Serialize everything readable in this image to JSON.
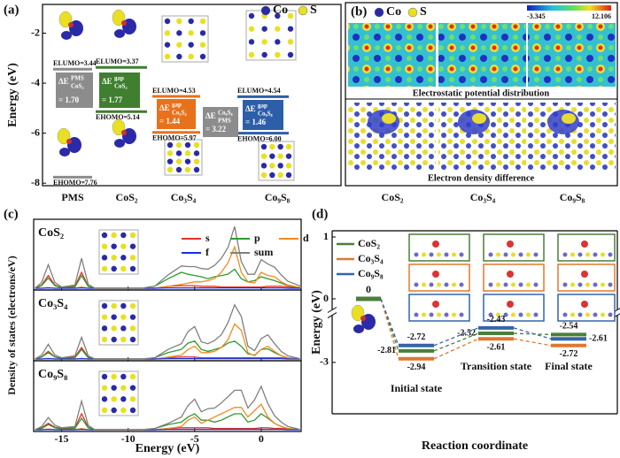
{
  "chart_data": [
    {
      "type": "energy-level",
      "panel": "(a)",
      "ylabel": "Energy (eV)",
      "ylim": [
        -8.1,
        -0.85
      ],
      "yticks": [
        -2,
        -4,
        -6,
        -8
      ],
      "categories": [
        "PMS",
        "CoS₂",
        "Co₃S₄",
        "Co₉S₈"
      ],
      "colors": [
        "#8c8c8c",
        "#3f7f2f",
        "#e8711c",
        "#2d5fa8"
      ],
      "legend": [
        "Co",
        "S"
      ],
      "legend_colors": [
        "#2a2aa8",
        "#e8e020"
      ],
      "lumo_label": "ELUMO=",
      "homo_label": "EHOMO=",
      "lumo": [
        -3.44,
        -3.37,
        -4.53,
        -4.54
      ],
      "homo": [
        -7.76,
        -5.14,
        -5.97,
        -6.0
      ],
      "homo_value_labels": [
        "-7.76",
        "-5.14",
        "-5.97",
        "-6.00"
      ],
      "gaps": [
        {
          "symbol": "ΔE",
          "sup": "PMS",
          "sub": "CoS₂",
          "value": 1.7,
          "value_label": "= 1.70",
          "color": "#8c8c8c"
        },
        {
          "symbol": "ΔE",
          "sup": "gap",
          "sub": "CoS₂",
          "value": 1.77,
          "value_label": "= 1.77",
          "color": "#3f7f2f"
        },
        {
          "symbol": "ΔE",
          "sup": "gap",
          "sub": "Co₃S₄",
          "value": 1.44,
          "value_label": "= 1.44",
          "color": "#e8711c"
        },
        {
          "symbol": "ΔE",
          "sup": "Co₉S₈",
          "sub": "PMS",
          "value": 3.22,
          "value_label": "= 3.22",
          "color": "#8c8c8c"
        },
        {
          "symbol": "ΔE",
          "sup": "gap",
          "sub": "Co₉S₈",
          "value": 1.46,
          "value_label": "= 1.46",
          "color": "#2d5fa8"
        }
      ]
    },
    {
      "type": "image-panel",
      "panel": "(b)",
      "legend": [
        "Co",
        "S"
      ],
      "legend_colors": [
        "#2a2aa8",
        "#e8e020"
      ],
      "colorbar_lim": [
        -3.345,
        12.106
      ],
      "captions": [
        "Electrostatic potential distribution",
        "Electron density difference"
      ],
      "categories": [
        "CoS₂",
        "Co₃S₄",
        "Co₉S₈"
      ]
    },
    {
      "type": "line",
      "panel": "(c)",
      "xlabel": "Energy (eV)",
      "ylabel": "Density of states (electrons/eV)",
      "xlim": [
        -17.1,
        3
      ],
      "xticks": [
        -15,
        -10,
        -5,
        0
      ],
      "ylim": [
        0,
        10
      ],
      "x": [
        -17,
        -16.5,
        -16,
        -15.5,
        -15,
        -14,
        -13.5,
        -13,
        -12.5,
        -12,
        -11,
        -10,
        -9,
        -8,
        -7,
        -6,
        -5.5,
        -5,
        -4.5,
        -4,
        -3.5,
        -3,
        -2.5,
        -2,
        -1.5,
        -1,
        -0.5,
        0,
        0.5,
        1,
        1.5,
        2,
        3
      ],
      "series": [
        {
          "name": "s",
          "color": "#e8302a"
        },
        {
          "name": "p",
          "color": "#2e9a2e"
        },
        {
          "name": "d",
          "color": "#f58a1f"
        },
        {
          "name": "f",
          "color": "#1530e0"
        },
        {
          "name": "sum",
          "color": "#808080"
        }
      ],
      "subplots": [
        {
          "label": "CoS₂",
          "values": [
            [
              0,
              0.5,
              2,
              0.5,
              0.1,
              0.3,
              2.5,
              0.3,
              0,
              0,
              0,
              0,
              0,
              0,
              0.3,
              0.4,
              0.4,
              0.4,
              0.3,
              0.3,
              0.3,
              0.2,
              0.2,
              0.2,
              0.2,
              0.2,
              0.2,
              0.2,
              0.3,
              0.3,
              0.3,
              0.2,
              0.1
            ],
            [
              0,
              0.4,
              1.6,
              0.4,
              0.1,
              0.2,
              2.0,
              0.3,
              0,
              0,
              0,
              0,
              0,
              0.3,
              1.5,
              2.5,
              2.2,
              2.0,
              1.8,
              1.5,
              1.8,
              2.0,
              2.2,
              3.0,
              1.5,
              1.0,
              1.2,
              1.8,
              1.5,
              1.2,
              0.8,
              0.4,
              0.1
            ],
            [
              0,
              0,
              0.1,
              0,
              0,
              0,
              0.2,
              0,
              0,
              0,
              0,
              0,
              0,
              0,
              0.3,
              0.6,
              0.8,
              1.0,
              1.0,
              1.2,
              1.5,
              2.5,
              4.0,
              6.5,
              2.5,
              1.0,
              0.8,
              2.5,
              2.0,
              1.8,
              1.0,
              0.5,
              0.1
            ],
            [
              0,
              0,
              0.05,
              0,
              0,
              0,
              0.05,
              0,
              0,
              0,
              0,
              0,
              0,
              0,
              0.05,
              0.05,
              0.05,
              0.05,
              0.05,
              0.05,
              0.05,
              0.05,
              0.05,
              0.05,
              0.05,
              0.05,
              0.05,
              0.05,
              0.05,
              0.05,
              0.05,
              0,
              0
            ],
            [
              0,
              0.9,
              3.7,
              0.9,
              0.2,
              0.5,
              4.7,
              0.6,
              0,
              0,
              0,
              0,
              0,
              0.3,
              2.1,
              3.5,
              3.4,
              3.4,
              3.1,
              3.0,
              3.6,
              4.7,
              6.4,
              9.7,
              4.2,
              2.2,
              2.2,
              4.5,
              3.8,
              3.3,
              2.1,
              1.1,
              0.3
            ]
          ]
        },
        {
          "label": "Co₃S₄",
          "values": [
            [
              0,
              0.3,
              1.2,
              0.3,
              0.1,
              0.3,
              1.8,
              0.3,
              0,
              0,
              0,
              0,
              0,
              0,
              0.2,
              0.3,
              0.3,
              0.3,
              0.2,
              0.2,
              0.2,
              0.2,
              0.2,
              0.2,
              0.2,
              0.2,
              0.2,
              0.2,
              0.2,
              0.2,
              0.2,
              0.1,
              0
            ],
            [
              0,
              0.3,
              1.0,
              0.3,
              0.1,
              0.2,
              1.5,
              0.2,
              0,
              0,
              0,
              0,
              0,
              0.2,
              1.0,
              1.5,
              2.5,
              2.8,
              1.5,
              1.2,
              1.5,
              1.8,
              2.5,
              2.8,
              2.0,
              0.8,
              0.6,
              1.5,
              1.6,
              1.0,
              0.5,
              0.2,
              0
            ],
            [
              0,
              0,
              0.1,
              0,
              0,
              0,
              0.1,
              0,
              0,
              0,
              0,
              0,
              0,
              0,
              0.3,
              0.6,
              1.5,
              2.0,
              1.0,
              1.0,
              1.2,
              1.8,
              3.0,
              5.5,
              4.5,
              1.0,
              0.5,
              1.5,
              2.0,
              1.2,
              0.5,
              0.2,
              0
            ],
            [
              0,
              0,
              0.05,
              0,
              0,
              0,
              0.05,
              0,
              0,
              0,
              0,
              0,
              0,
              0,
              0.05,
              0.05,
              0.05,
              0.05,
              0.05,
              0.05,
              0.05,
              0.05,
              0.05,
              0.05,
              0.05,
              0.05,
              0.05,
              0.05,
              0.05,
              0.05,
              0.05,
              0,
              0
            ],
            [
              0,
              0.6,
              2.3,
              0.6,
              0.2,
              0.5,
              3.4,
              0.5,
              0,
              0,
              0,
              0,
              0,
              0.2,
              1.5,
              2.4,
              4.3,
              5.1,
              2.7,
              2.4,
              2.9,
              3.8,
              5.7,
              8.5,
              6.7,
              2.0,
              1.3,
              3.2,
              3.8,
              2.4,
              1.2,
              0.5,
              0
            ]
          ]
        },
        {
          "label": "Co₉S₈",
          "values": [
            [
              0,
              0.3,
              1.0,
              0.4,
              0.2,
              0.3,
              2.5,
              0.4,
              0,
              0,
              0,
              0,
              0,
              0,
              0.2,
              0.3,
              0.3,
              0.3,
              0.3,
              0.3,
              0.2,
              0.2,
              0.2,
              0.2,
              0.2,
              0.2,
              0.2,
              0.3,
              0.3,
              0.2,
              0.2,
              0.1,
              0
            ],
            [
              0,
              0.2,
              0.8,
              0.3,
              0.1,
              0.2,
              1.8,
              0.3,
              0,
              0,
              0,
              0,
              0,
              0.2,
              0.8,
              1.2,
              2.0,
              2.5,
              1.5,
              1.5,
              1.2,
              1.5,
              2.0,
              2.5,
              2.5,
              1.2,
              1.5,
              2.5,
              1.8,
              1.0,
              0.5,
              0.2,
              0
            ],
            [
              0,
              0,
              0.1,
              0,
              0,
              0,
              0.2,
              0,
              0,
              0,
              0,
              0,
              0,
              0,
              0.2,
              0.5,
              1.5,
              2.0,
              1.0,
              1.5,
              2.0,
              2.5,
              3.0,
              3.5,
              3.5,
              2.0,
              3.0,
              4.0,
              2.0,
              1.0,
              0.5,
              0.2,
              0
            ],
            [
              0,
              0,
              0.05,
              0,
              0,
              0,
              0.05,
              0,
              0,
              0,
              0,
              0,
              0,
              0,
              0.05,
              0.05,
              0.05,
              0.05,
              0.05,
              0.05,
              0.05,
              0.05,
              0.05,
              0.05,
              0.05,
              0.05,
              0.05,
              0.05,
              0.05,
              0.05,
              0.05,
              0,
              0
            ],
            [
              0,
              0.5,
              1.9,
              0.7,
              0.3,
              0.5,
              4.5,
              0.7,
              0,
              0,
              0,
              0,
              0,
              0.2,
              1.0,
              2.0,
              3.8,
              4.8,
              2.8,
              3.3,
              3.4,
              4.2,
              5.2,
              6.2,
              6.2,
              3.4,
              4.7,
              6.8,
              4.1,
              2.2,
              1.2,
              0.5,
              0
            ]
          ]
        }
      ]
    },
    {
      "type": "energy-profile",
      "panel": "(d)",
      "ylabel": "Energy (eV)",
      "xlabel": "Reaction coordinate",
      "ylim": [
        -3.85,
        1.1
      ],
      "ybreak": [
        -2.25,
        -0.15
      ],
      "yticks": [
        1,
        0,
        -3
      ],
      "start_value": 0,
      "categories": [
        "Initial state",
        "Transition state",
        "Final state"
      ],
      "series": [
        {
          "name": "CoS₂",
          "color": "#4a7f3a",
          "values": [
            -2.81,
            -2.52,
            -2.54
          ]
        },
        {
          "name": "Co₃S₄",
          "color": "#e0782f",
          "values": [
            -2.94,
            -2.61,
            -2.72
          ]
        },
        {
          "name": "Co₉S₈",
          "color": "#3565a8",
          "values": [
            -2.72,
            -2.43,
            -2.61
          ]
        }
      ]
    }
  ]
}
